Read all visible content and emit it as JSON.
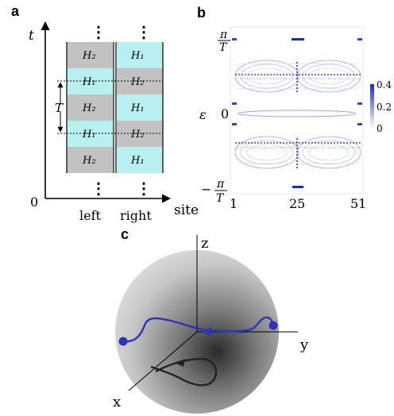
{
  "panels": {
    "a": "a",
    "b": "b",
    "c": "c"
  },
  "panel_a": {
    "t_axis": "t",
    "origin": "0",
    "site_axis": "site",
    "left_label": "left",
    "right_label": "right",
    "period_label": "T",
    "dots": "⋮",
    "left_column": [
      "H₂",
      "H₁",
      "H₂",
      "H₁",
      "H₂"
    ],
    "right_column": [
      "H₁",
      "H₂",
      "H₁",
      "H₂",
      "H₁"
    ],
    "colors": {
      "H1": "#b8f0f0",
      "H2": "#c2c2c2"
    }
  },
  "panel_b": {
    "y_label": "ε",
    "y_ticks": {
      "top": "π/T",
      "mid": "0",
      "bottom": "−π/T"
    },
    "x_ticks": [
      "1",
      "25",
      "51"
    ],
    "colorbar_ticks": [
      "0.4",
      "0.2",
      "0"
    ],
    "colorbar_range": [
      0,
      0.4
    ],
    "accent": "#1a2fb0"
  },
  "panel_c": {
    "axes": {
      "x": "x",
      "y": "y",
      "z": "z"
    },
    "curve_blue": "#2b35b5",
    "curve_black": "#222222"
  }
}
